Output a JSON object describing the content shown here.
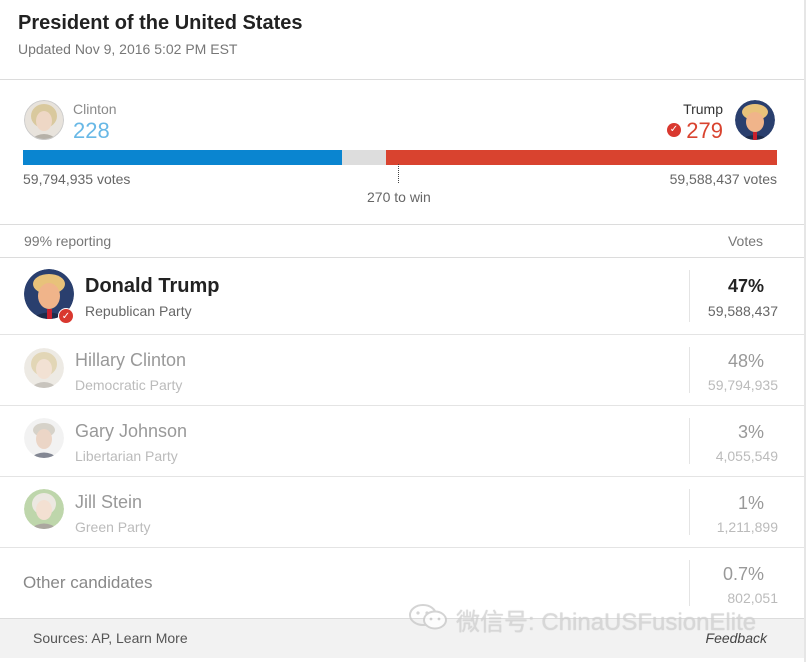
{
  "header": {
    "title": "President of the United States",
    "updated": "Updated Nov 9, 2016 5:02 PM EST"
  },
  "summary": {
    "left": {
      "name": "Clinton",
      "electoral_votes": "228",
      "popular_votes": "59,794,935 votes",
      "color": "#0a85d0"
    },
    "right": {
      "name": "Trump",
      "electoral_votes": "279",
      "popular_votes": "59,588,437 votes",
      "color": "#d9432f"
    },
    "win_label": "270 to win",
    "bar": {
      "total": 538,
      "left_value": 228,
      "right_value": 279,
      "threshold": 270,
      "gap_color": "#dddddd"
    }
  },
  "table": {
    "reporting": "99% reporting",
    "votes_header": "Votes",
    "rows": [
      {
        "name": "Donald Trump",
        "party": "Republican Party",
        "percent": "47%",
        "votes": "59,588,437",
        "winner": true
      },
      {
        "name": "Hillary Clinton",
        "party": "Democratic Party",
        "percent": "48%",
        "votes": "59,794,935",
        "winner": false
      },
      {
        "name": "Gary Johnson",
        "party": "Libertarian Party",
        "percent": "3%",
        "votes": "4,055,549",
        "winner": false
      },
      {
        "name": "Jill Stein",
        "party": "Green Party",
        "percent": "1%",
        "votes": "1,211,899",
        "winner": false
      }
    ],
    "other": {
      "name": "Other candidates",
      "percent": "0.7%",
      "votes": "802,051"
    }
  },
  "footer": {
    "sources": "Sources: AP, Learn More",
    "feedback": "Feedback"
  },
  "watermark": {
    "text": "微信号: ChinaUSFusionElite"
  },
  "icons": {
    "winner_check": "check-icon",
    "watermark_logo": "wechat-icon"
  }
}
